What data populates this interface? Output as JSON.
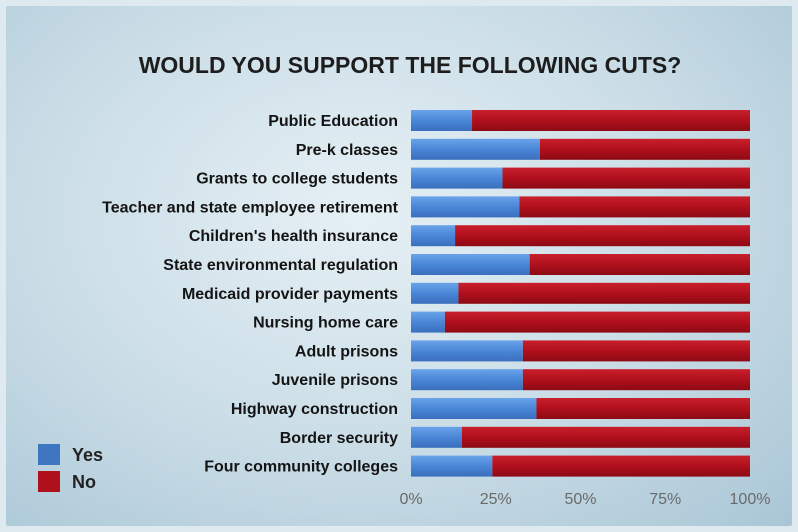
{
  "chart_data": {
    "type": "bar",
    "orientation": "horizontal",
    "stacked": true,
    "title": "WOULD YOU SUPPORT THE FOLLOWING CUTS?",
    "xlabel": "",
    "ylabel": "",
    "xlim": [
      0,
      100
    ],
    "x_ticks": [
      "0%",
      "25%",
      "50%",
      "75%",
      "100%"
    ],
    "grid": false,
    "legend_position": "bottom-left",
    "categories": [
      "Public Education",
      "Pre-k classes",
      "Grants to college students",
      "Teacher and state employee retirement",
      "Children's health insurance",
      "State environmental regulation",
      "Medicaid provider payments",
      "Nursing home care",
      "Adult prisons",
      "Juvenile prisons",
      "Highway construction",
      "Border security",
      "Four community colleges"
    ],
    "series": [
      {
        "name": "Yes",
        "color": "#4a86d6",
        "values": [
          18,
          38,
          27,
          32,
          13,
          35,
          14,
          10,
          33,
          33,
          37,
          15,
          24
        ]
      },
      {
        "name": "No",
        "color": "#b0101c",
        "values": [
          82,
          62,
          73,
          68,
          87,
          65,
          86,
          90,
          67,
          67,
          63,
          85,
          76
        ]
      }
    ]
  }
}
